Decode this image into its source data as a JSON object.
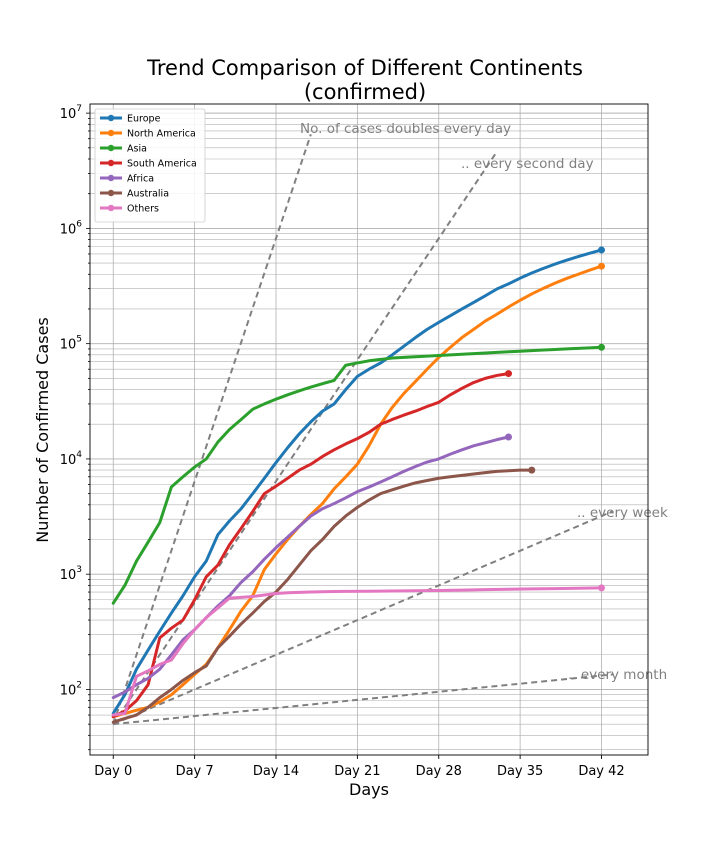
{
  "chart_data": {
    "type": "line",
    "title": "Trend Comparison of Different Continents",
    "subtitle": "(confirmed)",
    "xlabel": "Days",
    "ylabel": "Number of Confirmed Cases",
    "yscale": "log",
    "xlim": [
      -2,
      46
    ],
    "ylim": [
      27,
      12000000
    ],
    "grid": true,
    "legend": "top-left",
    "x_ticks": [
      {
        "value": 0,
        "label": "Day 0"
      },
      {
        "value": 7,
        "label": "Day 7"
      },
      {
        "value": 14,
        "label": "Day 14"
      },
      {
        "value": 21,
        "label": "Day 21"
      },
      {
        "value": 28,
        "label": "Day 28"
      },
      {
        "value": 35,
        "label": "Day 35"
      },
      {
        "value": 42,
        "label": "Day 42"
      }
    ],
    "y_ticks": [
      {
        "value": 100,
        "base": "10",
        "exp": "2"
      },
      {
        "value": 1000,
        "base": "10",
        "exp": "3"
      },
      {
        "value": 10000,
        "base": "10",
        "exp": "4"
      },
      {
        "value": 100000,
        "base": "10",
        "exp": "5"
      },
      {
        "value": 1000000,
        "base": "10",
        "exp": "6"
      },
      {
        "value": 10000000,
        "base": "10",
        "exp": "7"
      }
    ],
    "series": [
      {
        "name": "Europe",
        "color": "#1f77b4",
        "points": [
          [
            0,
            62
          ],
          [
            1,
            90
          ],
          [
            2,
            150
          ],
          [
            3,
            220
          ],
          [
            4,
            320
          ],
          [
            5,
            460
          ],
          [
            6,
            650
          ],
          [
            7,
            950
          ],
          [
            8,
            1300
          ],
          [
            9,
            2200
          ],
          [
            10,
            2900
          ],
          [
            11,
            3700
          ],
          [
            12,
            5000
          ],
          [
            13,
            6800
          ],
          [
            14,
            9300
          ],
          [
            15,
            12500
          ],
          [
            16,
            16500
          ],
          [
            17,
            21000
          ],
          [
            18,
            26000
          ],
          [
            19,
            30000
          ],
          [
            20,
            40000
          ],
          [
            21,
            52000
          ],
          [
            22,
            60000
          ],
          [
            23,
            68000
          ],
          [
            24,
            80000
          ],
          [
            25,
            95000
          ],
          [
            26,
            113000
          ],
          [
            27,
            133000
          ],
          [
            28,
            153000
          ],
          [
            29,
            175000
          ],
          [
            30,
            200000
          ],
          [
            31,
            228000
          ],
          [
            32,
            260000
          ],
          [
            33,
            298000
          ],
          [
            34,
            330000
          ],
          [
            35,
            370000
          ],
          [
            36,
            410000
          ],
          [
            37,
            450000
          ],
          [
            38,
            490000
          ],
          [
            39,
            530000
          ],
          [
            40,
            570000
          ],
          [
            41,
            610000
          ],
          [
            42,
            650000
          ]
        ]
      },
      {
        "name": "North America",
        "color": "#ff7f0e",
        "points": [
          [
            0,
            58
          ],
          [
            1,
            62
          ],
          [
            2,
            66
          ],
          [
            3,
            70
          ],
          [
            4,
            78
          ],
          [
            5,
            90
          ],
          [
            6,
            110
          ],
          [
            7,
            135
          ],
          [
            8,
            165
          ],
          [
            9,
            230
          ],
          [
            10,
            330
          ],
          [
            11,
            480
          ],
          [
            12,
            650
          ],
          [
            13,
            1100
          ],
          [
            14,
            1500
          ],
          [
            15,
            2000
          ],
          [
            16,
            2600
          ],
          [
            17,
            3300
          ],
          [
            18,
            4100
          ],
          [
            19,
            5500
          ],
          [
            20,
            7000
          ],
          [
            21,
            9000
          ],
          [
            22,
            13000
          ],
          [
            23,
            20000
          ],
          [
            24,
            28000
          ],
          [
            25,
            37000
          ],
          [
            26,
            47000
          ],
          [
            27,
            60000
          ],
          [
            28,
            76000
          ],
          [
            29,
            93000
          ],
          [
            30,
            113000
          ],
          [
            31,
            133000
          ],
          [
            32,
            157000
          ],
          [
            33,
            180000
          ],
          [
            34,
            208000
          ],
          [
            35,
            238000
          ],
          [
            36,
            270000
          ],
          [
            37,
            302000
          ],
          [
            38,
            335000
          ],
          [
            39,
            368000
          ],
          [
            40,
            400000
          ],
          [
            41,
            435000
          ],
          [
            42,
            470000
          ]
        ]
      },
      {
        "name": "Asia",
        "color": "#2ca02c",
        "points": [
          [
            0,
            560
          ],
          [
            1,
            800
          ],
          [
            2,
            1300
          ],
          [
            3,
            1900
          ],
          [
            4,
            2800
          ],
          [
            5,
            5700
          ],
          [
            6,
            7000
          ],
          [
            7,
            8500
          ],
          [
            8,
            10000
          ],
          [
            9,
            14000
          ],
          [
            10,
            18000
          ],
          [
            11,
            22000
          ],
          [
            12,
            27000
          ],
          [
            13,
            30000
          ],
          [
            14,
            33000
          ],
          [
            15,
            36000
          ],
          [
            16,
            39000
          ],
          [
            17,
            42000
          ],
          [
            18,
            45000
          ],
          [
            19,
            48000
          ],
          [
            20,
            65000
          ],
          [
            21,
            68000
          ],
          [
            22,
            71000
          ],
          [
            23,
            73000
          ],
          [
            24,
            75000
          ],
          [
            25,
            76000
          ],
          [
            26,
            77000
          ],
          [
            27,
            78000
          ],
          [
            28,
            79000
          ],
          [
            29,
            80000
          ],
          [
            30,
            81000
          ],
          [
            31,
            82000
          ],
          [
            32,
            83000
          ],
          [
            33,
            84000
          ],
          [
            34,
            85000
          ],
          [
            35,
            86000
          ],
          [
            36,
            87000
          ],
          [
            37,
            88000
          ],
          [
            38,
            89000
          ],
          [
            39,
            90000
          ],
          [
            40,
            91000
          ],
          [
            41,
            92000
          ],
          [
            42,
            93000
          ]
        ]
      },
      {
        "name": "South America",
        "color": "#d62728",
        "points": [
          [
            0,
            58
          ],
          [
            1,
            65
          ],
          [
            2,
            80
          ],
          [
            3,
            110
          ],
          [
            4,
            280
          ],
          [
            5,
            340
          ],
          [
            6,
            400
          ],
          [
            7,
            600
          ],
          [
            8,
            950
          ],
          [
            9,
            1200
          ],
          [
            10,
            1800
          ],
          [
            11,
            2500
          ],
          [
            12,
            3500
          ],
          [
            13,
            5000
          ],
          [
            14,
            5800
          ],
          [
            15,
            6800
          ],
          [
            16,
            8000
          ],
          [
            17,
            9000
          ],
          [
            18,
            10500
          ],
          [
            19,
            12000
          ],
          [
            20,
            13500
          ],
          [
            21,
            15000
          ],
          [
            22,
            17000
          ],
          [
            23,
            20000
          ],
          [
            24,
            22000
          ],
          [
            25,
            24000
          ],
          [
            26,
            26000
          ],
          [
            27,
            28500
          ],
          [
            28,
            31000
          ],
          [
            29,
            36000
          ],
          [
            30,
            41000
          ],
          [
            31,
            46000
          ],
          [
            32,
            50000
          ],
          [
            33,
            53000
          ],
          [
            34,
            55000
          ]
        ]
      },
      {
        "name": "Africa",
        "color": "#9467bd",
        "points": [
          [
            0,
            85
          ],
          [
            1,
            95
          ],
          [
            2,
            110
          ],
          [
            3,
            125
          ],
          [
            4,
            150
          ],
          [
            5,
            200
          ],
          [
            6,
            270
          ],
          [
            7,
            330
          ],
          [
            8,
            420
          ],
          [
            9,
            530
          ],
          [
            10,
            650
          ],
          [
            11,
            850
          ],
          [
            12,
            1050
          ],
          [
            13,
            1350
          ],
          [
            14,
            1700
          ],
          [
            15,
            2100
          ],
          [
            16,
            2600
          ],
          [
            17,
            3200
          ],
          [
            18,
            3700
          ],
          [
            19,
            4100
          ],
          [
            20,
            4600
          ],
          [
            21,
            5200
          ],
          [
            22,
            5700
          ],
          [
            23,
            6300
          ],
          [
            24,
            7000
          ],
          [
            25,
            7800
          ],
          [
            26,
            8600
          ],
          [
            27,
            9400
          ],
          [
            28,
            10000
          ],
          [
            29,
            11000
          ],
          [
            30,
            12000
          ],
          [
            31,
            13000
          ],
          [
            32,
            13800
          ],
          [
            33,
            14700
          ],
          [
            34,
            15500
          ]
        ]
      },
      {
        "name": "Australia",
        "color": "#8c564b",
        "points": [
          [
            0,
            52
          ],
          [
            1,
            56
          ],
          [
            2,
            60
          ],
          [
            3,
            70
          ],
          [
            4,
            85
          ],
          [
            5,
            100
          ],
          [
            6,
            120
          ],
          [
            7,
            140
          ],
          [
            8,
            160
          ],
          [
            9,
            230
          ],
          [
            10,
            290
          ],
          [
            11,
            370
          ],
          [
            12,
            460
          ],
          [
            13,
            580
          ],
          [
            14,
            700
          ],
          [
            15,
            900
          ],
          [
            16,
            1200
          ],
          [
            17,
            1600
          ],
          [
            18,
            2000
          ],
          [
            19,
            2600
          ],
          [
            20,
            3200
          ],
          [
            21,
            3800
          ],
          [
            22,
            4400
          ],
          [
            23,
            5000
          ],
          [
            24,
            5400
          ],
          [
            25,
            5800
          ],
          [
            26,
            6200
          ],
          [
            27,
            6500
          ],
          [
            28,
            6800
          ],
          [
            29,
            7000
          ],
          [
            30,
            7200
          ],
          [
            31,
            7400
          ],
          [
            32,
            7600
          ],
          [
            33,
            7800
          ],
          [
            34,
            7900
          ],
          [
            35,
            8000
          ],
          [
            36,
            8000
          ]
        ]
      },
      {
        "name": "Others",
        "color": "#e377c2",
        "points": [
          [
            0,
            60
          ],
          [
            1,
            62
          ],
          [
            2,
            130
          ],
          [
            3,
            145
          ],
          [
            4,
            165
          ],
          [
            5,
            180
          ],
          [
            6,
            250
          ],
          [
            7,
            330
          ],
          [
            8,
            420
          ],
          [
            9,
            510
          ],
          [
            10,
            620
          ],
          [
            11,
            630
          ],
          [
            12,
            640
          ],
          [
            13,
            660
          ],
          [
            14,
            680
          ],
          [
            15,
            690
          ],
          [
            16,
            695
          ],
          [
            17,
            700
          ],
          [
            18,
            705
          ],
          [
            19,
            708
          ],
          [
            20,
            710
          ],
          [
            22,
            712
          ],
          [
            24,
            715
          ],
          [
            26,
            718
          ],
          [
            28,
            722
          ],
          [
            30,
            728
          ],
          [
            32,
            735
          ],
          [
            34,
            740
          ],
          [
            36,
            745
          ],
          [
            38,
            750
          ],
          [
            40,
            755
          ],
          [
            42,
            760
          ]
        ]
      }
    ],
    "reference_lines": [
      {
        "label": "No. of cases doubles every day",
        "doubling_days": 1,
        "start": [
          0,
          50
        ],
        "end": [
          17,
          6553600
        ]
      },
      {
        "label": ".. every second day",
        "doubling_days": 2,
        "start": [
          0,
          50
        ],
        "end": [
          33,
          4633820
        ]
      },
      {
        "label": ".. every week",
        "doubling_days": 7,
        "start": [
          0,
          50
        ],
        "end": [
          43,
          3525
        ]
      },
      {
        "label": ".. every month",
        "doubling_days": 30,
        "start": [
          0,
          50
        ],
        "end": [
          43,
          135
        ]
      }
    ]
  }
}
